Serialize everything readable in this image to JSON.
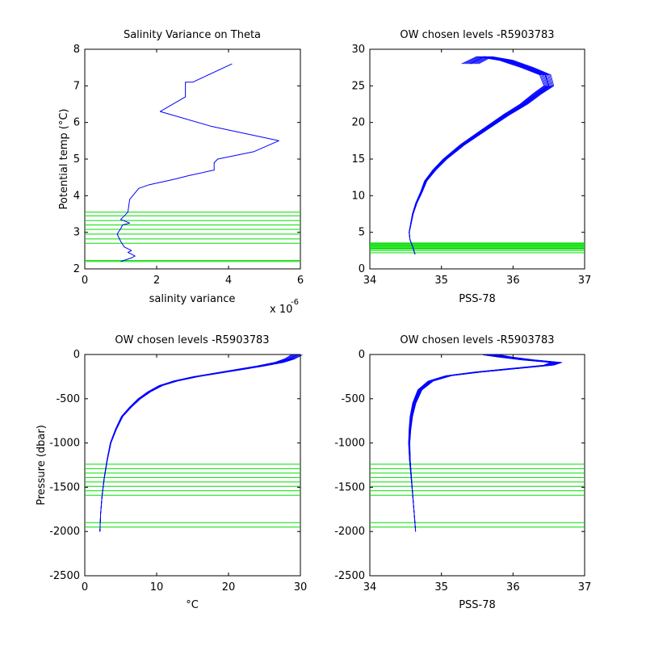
{
  "colors": {
    "series": "#0000ff",
    "levels": "#00dd00",
    "axes": "#000000",
    "background": "#ffffff"
  },
  "chart_data": [
    {
      "type": "line",
      "title": "Salinity Variance on Theta",
      "xlabel": "salinity variance",
      "ylabel": "Potential temp (°C)",
      "x_exponent_label": "x 10",
      "x_exponent_power": "-6",
      "xlim": [
        0,
        6
      ],
      "ylim": [
        2,
        8
      ],
      "xticks": [
        "0",
        "2",
        "4",
        "6"
      ],
      "yticks": [
        "2",
        "3",
        "4",
        "5",
        "6",
        "7",
        "8"
      ],
      "grid": false,
      "series": [
        {
          "x": [
            1.0,
            1.3,
            1.4,
            1.2,
            1.3,
            1.1,
            1.0,
            0.9,
            1.0,
            1.05,
            1.25,
            1.0,
            1.2,
            1.25,
            1.5,
            1.8,
            2.5,
            2.9,
            3.6,
            3.6,
            3.7,
            4.7,
            5.4,
            3.5,
            2.1,
            2.8,
            2.8,
            3.0,
            4.1
          ],
          "y": [
            2.2,
            2.3,
            2.35,
            2.45,
            2.5,
            2.6,
            2.75,
            2.95,
            3.1,
            3.2,
            3.25,
            3.35,
            3.55,
            3.9,
            4.2,
            4.3,
            4.45,
            4.55,
            4.7,
            4.9,
            5.0,
            5.2,
            5.5,
            5.9,
            6.3,
            6.7,
            7.1,
            7.1,
            7.6
          ]
        }
      ],
      "levels": [
        2.2,
        2.23,
        2.7,
        2.82,
        2.95,
        3.08,
        3.2,
        3.32,
        3.45,
        3.55
      ]
    },
    {
      "type": "line",
      "title": "OW chosen levels -R5903783",
      "xlabel": "PSS-78",
      "ylabel": "",
      "xlim": [
        34,
        37
      ],
      "ylim": [
        0,
        30
      ],
      "xticks": [
        "34",
        "35",
        "36",
        "37"
      ],
      "yticks": [
        "0",
        "5",
        "10",
        "15",
        "20",
        "25",
        "30"
      ],
      "grid": false,
      "series": [
        {
          "x": [
            34.63,
            34.6,
            34.56,
            34.55,
            34.57,
            34.6,
            34.65,
            34.72,
            34.78,
            34.9,
            35.05,
            35.3,
            35.6,
            35.9,
            36.15,
            36.35,
            36.5,
            36.45,
            36.2,
            35.9,
            35.6,
            35.4
          ],
          "y": [
            2.0,
            3.0,
            4.0,
            5.0,
            6.0,
            7.5,
            9.0,
            10.5,
            12.0,
            13.5,
            15.0,
            17.0,
            19.0,
            21.0,
            22.5,
            24.0,
            25.0,
            26.5,
            27.5,
            28.5,
            29.0,
            28.0
          ]
        }
      ],
      "spread": 0.12,
      "levels": [
        2.2,
        2.5,
        2.7,
        2.82,
        2.95,
        3.08,
        3.2,
        3.32,
        3.45,
        3.55
      ]
    },
    {
      "type": "line",
      "title": "OW chosen levels -R5903783",
      "xlabel": "°C",
      "ylabel": "Pressure (dbar)",
      "xlim": [
        0,
        30
      ],
      "ylim": [
        -2500,
        0
      ],
      "xticks": [
        "0",
        "10",
        "20",
        "30"
      ],
      "yticks": [
        "-2500",
        "-2000",
        "-1500",
        "-1000",
        "-500",
        "0"
      ],
      "grid": false,
      "series": [
        {
          "x": [
            2.1,
            2.2,
            2.4,
            2.7,
            3.1,
            3.6,
            4.3,
            5.2,
            6.3,
            7.6,
            9.0,
            10.6,
            12.6,
            15.5,
            18.5,
            21.5,
            24.5,
            27.0,
            28.5,
            29.5
          ],
          "y": [
            -2000,
            -1800,
            -1600,
            -1400,
            -1200,
            -1000,
            -850,
            -700,
            -600,
            -500,
            -420,
            -350,
            -300,
            -250,
            -210,
            -170,
            -130,
            -90,
            -50,
            -5
          ]
        }
      ],
      "spread": 0.8,
      "levels": [
        -1240,
        -1290,
        -1340,
        -1390,
        -1440,
        -1490,
        -1540,
        -1590,
        -1900,
        -1950
      ]
    },
    {
      "type": "line",
      "title": "OW chosen levels -R5903783",
      "xlabel": "PSS-78",
      "ylabel": "",
      "xlim": [
        34,
        37
      ],
      "ylim": [
        -2500,
        0
      ],
      "xticks": [
        "34",
        "35",
        "36",
        "37"
      ],
      "yticks": [
        "-2500",
        "-2000",
        "-1500",
        "-1000",
        "-500",
        "0"
      ],
      "grid": false,
      "series": [
        {
          "x": [
            34.64,
            34.62,
            34.6,
            34.58,
            34.56,
            34.55,
            34.56,
            34.58,
            34.62,
            34.7,
            34.85,
            35.1,
            35.5,
            36.0,
            36.5,
            36.6,
            36.2,
            35.9,
            35.7
          ],
          "y": [
            -2000,
            -1800,
            -1600,
            -1400,
            -1200,
            -1000,
            -850,
            -700,
            -550,
            -400,
            -300,
            -240,
            -200,
            -160,
            -120,
            -90,
            -60,
            -30,
            -5
          ]
        }
      ],
      "spread": 0.12,
      "levels": [
        -1240,
        -1290,
        -1340,
        -1390,
        -1440,
        -1490,
        -1540,
        -1590,
        -1900,
        -1950
      ]
    }
  ]
}
